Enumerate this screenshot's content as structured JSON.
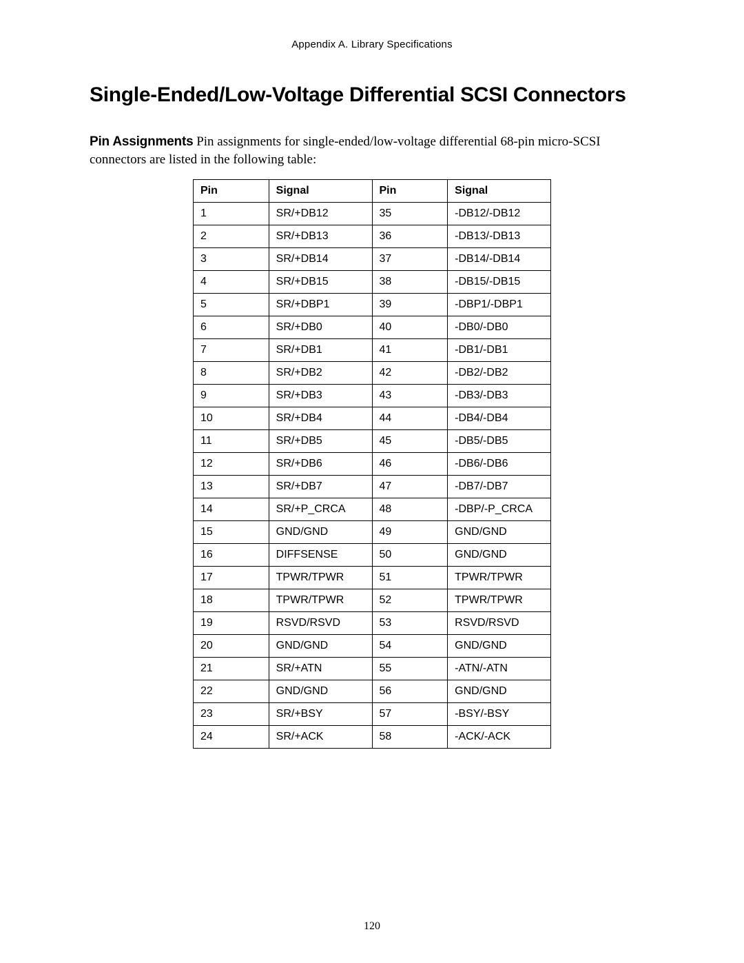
{
  "header": {
    "appendix": "Appendix A.  Library Specifications"
  },
  "section": {
    "title": "Single-Ended/Low-Voltage Differential SCSI Connectors",
    "subheading": "Pin Assignments",
    "intro": "Pin assignments for single-ended/low-voltage differential 68-pin micro-SCSI connectors are listed in the following table:"
  },
  "table": {
    "columns": [
      "Pin",
      "Signal",
      "Pin",
      "Signal"
    ],
    "rows": [
      [
        "1",
        "SR/+DB12",
        "35",
        "-DB12/-DB12"
      ],
      [
        "2",
        "SR/+DB13",
        "36",
        "-DB13/-DB13"
      ],
      [
        "3",
        "SR/+DB14",
        "37",
        "-DB14/-DB14"
      ],
      [
        "4",
        "SR/+DB15",
        "38",
        "-DB15/-DB15"
      ],
      [
        "5",
        "SR/+DBP1",
        "39",
        "-DBP1/-DBP1"
      ],
      [
        "6",
        "SR/+DB0",
        "40",
        "-DB0/-DB0"
      ],
      [
        "7",
        "SR/+DB1",
        "41",
        "-DB1/-DB1"
      ],
      [
        "8",
        "SR/+DB2",
        "42",
        "-DB2/-DB2"
      ],
      [
        "9",
        "SR/+DB3",
        "43",
        "-DB3/-DB3"
      ],
      [
        "10",
        "SR/+DB4",
        "44",
        "-DB4/-DB4"
      ],
      [
        "11",
        "SR/+DB5",
        "45",
        "-DB5/-DB5"
      ],
      [
        "12",
        "SR/+DB6",
        "46",
        "-DB6/-DB6"
      ],
      [
        "13",
        "SR/+DB7",
        "47",
        "-DB7/-DB7"
      ],
      [
        "14",
        "SR/+P_CRCA",
        "48",
        "-DBP/-P_CRCA"
      ],
      [
        "15",
        "GND/GND",
        "49",
        "GND/GND"
      ],
      [
        "16",
        "DIFFSENSE",
        "50",
        "GND/GND"
      ],
      [
        "17",
        "TPWR/TPWR",
        "51",
        "TPWR/TPWR"
      ],
      [
        "18",
        "TPWR/TPWR",
        "52",
        "TPWR/TPWR"
      ],
      [
        "19",
        "RSVD/RSVD",
        "53",
        "RSVD/RSVD"
      ],
      [
        "20",
        "GND/GND",
        "54",
        "GND/GND"
      ],
      [
        "21",
        "SR/+ATN",
        "55",
        "-ATN/-ATN"
      ],
      [
        "22",
        "GND/GND",
        "56",
        "GND/GND"
      ],
      [
        "23",
        "SR/+BSY",
        "57",
        "-BSY/-BSY"
      ],
      [
        "24",
        "SR/+ACK",
        "58",
        "-ACK/-ACK"
      ]
    ]
  },
  "footer": {
    "page_number": "120"
  }
}
